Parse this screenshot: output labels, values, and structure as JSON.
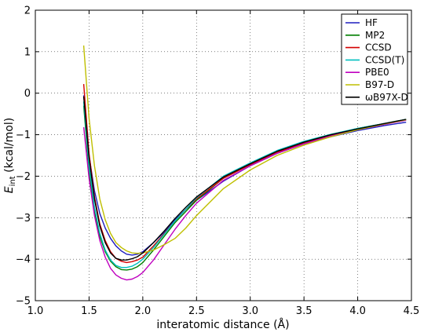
{
  "chart_data": {
    "type": "line",
    "title": "",
    "xlabel": "interatomic distance (Å)",
    "ylabel": {
      "prefix": "E",
      "subscript": "int",
      "suffix": " (kcal/mol)"
    },
    "xlim": [
      1.0,
      4.5
    ],
    "ylim": [
      -5,
      2
    ],
    "xticks": [
      1.0,
      1.5,
      2.0,
      2.5,
      3.0,
      3.5,
      4.0,
      4.5
    ],
    "xtick_labels": [
      "1.0",
      "1.5",
      "2.0",
      "2.5",
      "3.0",
      "3.5",
      "4.0",
      "4.5"
    ],
    "yticks": [
      -5,
      -4,
      -3,
      -2,
      -1,
      0,
      1,
      2
    ],
    "ytick_labels": [
      "−5",
      "−4",
      "−3",
      "−2",
      "−1",
      "0",
      "1",
      "2"
    ],
    "grid": true,
    "legend_position": "top-right",
    "series": [
      {
        "name": "HF",
        "color": "#1f1fbf",
        "x": [
          1.45,
          1.5,
          1.55,
          1.6,
          1.65,
          1.7,
          1.75,
          1.8,
          1.85,
          1.9,
          1.95,
          2.0,
          2.1,
          2.2,
          2.3,
          2.4,
          2.5,
          2.75,
          3.0,
          3.25,
          3.5,
          3.75,
          4.0,
          4.25,
          4.45
        ],
        "y": [
          -0.05,
          -1.5,
          -2.35,
          -2.9,
          -3.25,
          -3.5,
          -3.68,
          -3.8,
          -3.88,
          -3.9,
          -3.88,
          -3.82,
          -3.6,
          -3.35,
          -3.05,
          -2.8,
          -2.58,
          -2.12,
          -1.75,
          -1.45,
          -1.22,
          -1.05,
          -0.9,
          -0.78,
          -0.7
        ]
      },
      {
        "name": "MP2",
        "color": "#007f00",
        "x": [
          1.45,
          1.5,
          1.55,
          1.6,
          1.65,
          1.7,
          1.75,
          1.8,
          1.85,
          1.9,
          1.95,
          2.0,
          2.1,
          2.2,
          2.3,
          2.4,
          2.5,
          2.75,
          3.0,
          3.25,
          3.5,
          3.75,
          4.0,
          4.25,
          4.45
        ],
        "y": [
          -0.3,
          -1.9,
          -2.85,
          -3.45,
          -3.82,
          -4.05,
          -4.18,
          -4.25,
          -4.26,
          -4.24,
          -4.18,
          -4.08,
          -3.78,
          -3.45,
          -3.12,
          -2.85,
          -2.58,
          -2.05,
          -1.72,
          -1.4,
          -1.18,
          -1.0,
          -0.85,
          -0.73,
          -0.63
        ]
      },
      {
        "name": "CCSD",
        "color": "#d40000",
        "x": [
          1.45,
          1.5,
          1.55,
          1.6,
          1.65,
          1.7,
          1.75,
          1.8,
          1.85,
          1.9,
          1.95,
          2.0,
          2.1,
          2.2,
          2.3,
          2.4,
          2.5,
          2.75,
          3.0,
          3.25,
          3.5,
          3.75,
          4.0,
          4.25,
          4.45
        ],
        "y": [
          0.22,
          -1.45,
          -2.5,
          -3.15,
          -3.55,
          -3.82,
          -3.98,
          -4.05,
          -4.08,
          -4.06,
          -4.02,
          -3.95,
          -3.68,
          -3.38,
          -3.08,
          -2.8,
          -2.55,
          -2.05,
          -1.72,
          -1.42,
          -1.2,
          -1.02,
          -0.87,
          -0.74,
          -0.64
        ]
      },
      {
        "name": "CCSD(T)",
        "color": "#00bfbf",
        "x": [
          1.45,
          1.5,
          1.55,
          1.6,
          1.65,
          1.7,
          1.75,
          1.8,
          1.85,
          1.9,
          1.95,
          2.0,
          2.1,
          2.2,
          2.3,
          2.4,
          2.5,
          2.75,
          3.0,
          3.25,
          3.5,
          3.75,
          4.0,
          4.25,
          4.45
        ],
        "y": [
          -0.2,
          -1.75,
          -2.75,
          -3.38,
          -3.78,
          -4.02,
          -4.15,
          -4.2,
          -4.2,
          -4.17,
          -4.1,
          -4.0,
          -3.72,
          -3.4,
          -3.08,
          -2.8,
          -2.52,
          -2.0,
          -1.68,
          -1.38,
          -1.16,
          -0.99,
          -0.85,
          -0.73,
          -0.63
        ]
      },
      {
        "name": "PBE0",
        "color": "#bf00bf",
        "x": [
          1.45,
          1.5,
          1.55,
          1.6,
          1.65,
          1.7,
          1.75,
          1.8,
          1.85,
          1.9,
          1.95,
          2.0,
          2.1,
          2.2,
          2.3,
          2.4,
          2.5,
          2.75,
          3.0,
          3.25,
          3.5,
          3.75,
          4.0,
          4.25,
          4.45
        ],
        "y": [
          -0.82,
          -2.05,
          -2.95,
          -3.55,
          -3.95,
          -4.22,
          -4.38,
          -4.46,
          -4.5,
          -4.48,
          -4.42,
          -4.32,
          -4.02,
          -3.65,
          -3.28,
          -2.95,
          -2.65,
          -2.1,
          -1.75,
          -1.45,
          -1.22,
          -1.03,
          -0.88,
          -0.75,
          -0.65
        ]
      },
      {
        "name": "B97-D",
        "color": "#bfbf00",
        "x": [
          1.45,
          1.5,
          1.55,
          1.6,
          1.65,
          1.7,
          1.75,
          1.8,
          1.85,
          1.9,
          1.95,
          2.0,
          2.1,
          2.2,
          2.3,
          2.4,
          2.5,
          2.75,
          3.0,
          3.25,
          3.5,
          3.75,
          4.0,
          4.25,
          4.45
        ],
        "y": [
          1.15,
          -0.6,
          -1.75,
          -2.55,
          -3.05,
          -3.38,
          -3.6,
          -3.72,
          -3.8,
          -3.85,
          -3.86,
          -3.85,
          -3.78,
          -3.65,
          -3.5,
          -3.25,
          -2.95,
          -2.3,
          -1.85,
          -1.5,
          -1.25,
          -1.05,
          -0.88,
          -0.74,
          -0.64
        ]
      },
      {
        "name": "ωB97X-D",
        "color": "#000000",
        "x": [
          1.45,
          1.5,
          1.55,
          1.6,
          1.65,
          1.7,
          1.75,
          1.8,
          1.85,
          1.9,
          1.95,
          2.0,
          2.1,
          2.2,
          2.3,
          2.4,
          2.5,
          2.75,
          3.0,
          3.25,
          3.5,
          3.75,
          4.0,
          4.25,
          4.45
        ],
        "y": [
          -0.08,
          -1.55,
          -2.55,
          -3.2,
          -3.6,
          -3.85,
          -3.98,
          -4.02,
          -4.02,
          -3.99,
          -3.94,
          -3.85,
          -3.6,
          -3.32,
          -3.02,
          -2.75,
          -2.5,
          -2.02,
          -1.7,
          -1.4,
          -1.18,
          -1.0,
          -0.86,
          -0.73,
          -0.63
        ]
      }
    ]
  }
}
